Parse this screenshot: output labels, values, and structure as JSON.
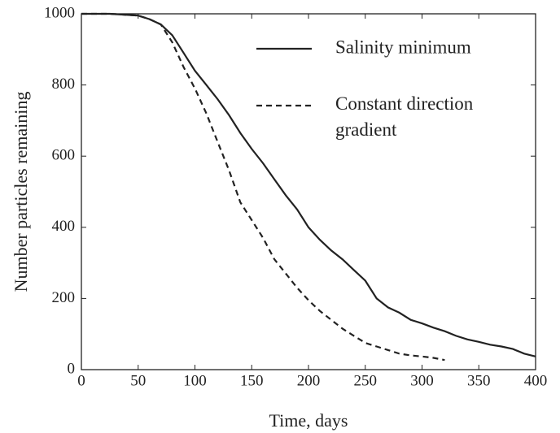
{
  "chart_data": {
    "type": "line",
    "x_label": "Time, days",
    "y_label": "Number particles remaining",
    "xlim": [
      0,
      400
    ],
    "xticks": [
      0,
      50,
      100,
      150,
      200,
      250,
      300,
      350,
      400
    ],
    "ylim": [
      0,
      1000
    ],
    "yticks": [
      0,
      200,
      400,
      600,
      800,
      1000
    ],
    "x": [
      0,
      25,
      50,
      60,
      70,
      80,
      90,
      100,
      110,
      120,
      130,
      140,
      150,
      160,
      170,
      180,
      190,
      200,
      210,
      220,
      230,
      240,
      250,
      260,
      270,
      280,
      290,
      300,
      310,
      320,
      330,
      340,
      350,
      360,
      370,
      380,
      390,
      400
    ],
    "series": [
      {
        "name": "Salinity minimum",
        "color": "#222222",
        "dash": false,
        "values": [
          1000,
          1000,
          995,
          985,
          970,
          940,
          890,
          840,
          800,
          760,
          715,
          665,
          620,
          580,
          535,
          490,
          450,
          400,
          365,
          335,
          310,
          280,
          250,
          200,
          175,
          160,
          140,
          130,
          118,
          108,
          95,
          85,
          78,
          70,
          65,
          58,
          45,
          37
        ]
      },
      {
        "name": "Constant direction gradient",
        "color": "#222222",
        "dash": true,
        "values": [
          1000,
          1000,
          995,
          985,
          970,
          920,
          850,
          790,
          720,
          640,
          560,
          470,
          420,
          370,
          310,
          270,
          230,
          195,
          165,
          140,
          115,
          95,
          75,
          65,
          55,
          45,
          40,
          37,
          33,
          27,
          null,
          null,
          null,
          null,
          null,
          null,
          null,
          null
        ]
      }
    ]
  }
}
